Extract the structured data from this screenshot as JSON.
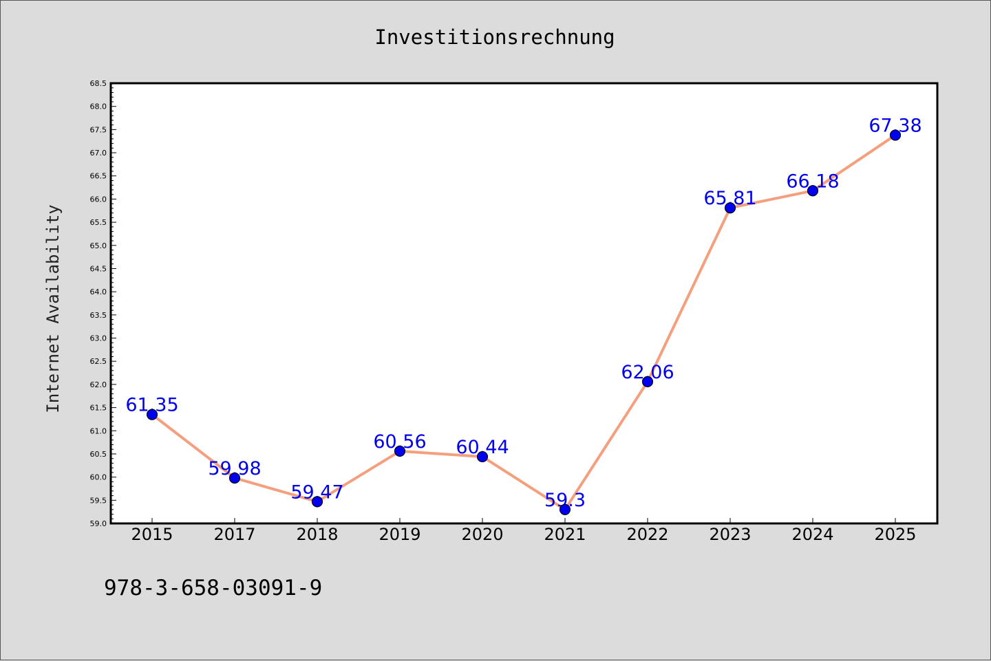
{
  "chart_data": {
    "type": "line",
    "title": "Investitionsrechnung",
    "xlabel": "",
    "ylabel": "Internet Availability",
    "categories": [
      "2015",
      "2017",
      "2018",
      "2019",
      "2020",
      "2021",
      "2022",
      "2023",
      "2024",
      "2025"
    ],
    "values": [
      61.35,
      59.98,
      59.47,
      60.56,
      60.44,
      59.3,
      62.06,
      65.81,
      66.18,
      67.38
    ],
    "data_labels": [
      "61.35",
      "59.98",
      "59.47",
      "60.56",
      "60.44",
      "59.3",
      "62.06",
      "65.81",
      "66.18",
      "67.38"
    ],
    "ylim": [
      59.0,
      68.5
    ],
    "yticks": [
      "59.0",
      "59.5",
      "60.0",
      "60.5",
      "61.0",
      "61.5",
      "62.0",
      "62.5",
      "63.0",
      "63.5",
      "64.0",
      "64.5",
      "65.0",
      "65.5",
      "66.0",
      "66.5",
      "67.0",
      "67.5",
      "68.0",
      "68.5"
    ],
    "grid": false,
    "line_color": "#f4a07f",
    "marker_color": "#0000ee",
    "label_color": "#0000ee"
  },
  "footer": {
    "isbn": "978-3-658-03091-9"
  }
}
